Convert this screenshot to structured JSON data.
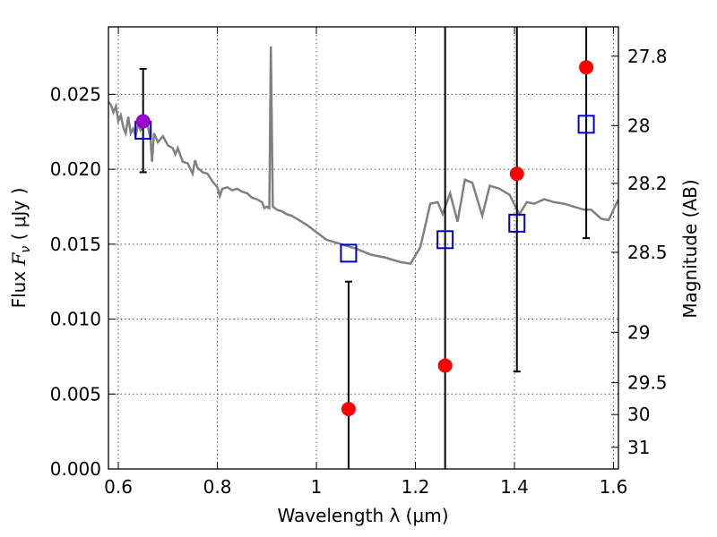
{
  "chart_data": {
    "type": "scatter",
    "xlabel": "Wavelength  λ (μm)",
    "ylabel": "Flux  F_ν  ( μJy )",
    "y2label": "Magnitude (AB)",
    "xlim": [
      0.58,
      1.61
    ],
    "ylim": [
      0.0,
      0.0295
    ],
    "grid": true,
    "x_ticks": [
      {
        "value": 0.6,
        "label": "0.6"
      },
      {
        "value": 0.8,
        "label": "0.8"
      },
      {
        "value": 1.0,
        "label": "1"
      },
      {
        "value": 1.2,
        "label": "1.2"
      },
      {
        "value": 1.4,
        "label": "1.4"
      },
      {
        "value": 1.6,
        "label": "1.6"
      }
    ],
    "y_ticks": [
      {
        "value": 0.0,
        "label": "0.000"
      },
      {
        "value": 0.005,
        "label": "0.005"
      },
      {
        "value": 0.01,
        "label": "0.010"
      },
      {
        "value": 0.015,
        "label": "0.015"
      },
      {
        "value": 0.02,
        "label": "0.020"
      },
      {
        "value": 0.025,
        "label": "0.025"
      }
    ],
    "y2_ticks": [
      {
        "mag": 27.8,
        "label": "27.8"
      },
      {
        "mag": 28.0,
        "label": "28"
      },
      {
        "mag": 28.2,
        "label": "28.2"
      },
      {
        "mag": 28.5,
        "label": "28.5"
      },
      {
        "mag": 29.0,
        "label": "29"
      },
      {
        "mag": 29.5,
        "label": "29.5"
      },
      {
        "mag": 30.0,
        "label": "30"
      },
      {
        "mag": 31.0,
        "label": "31"
      }
    ],
    "series": [
      {
        "kind": "line",
        "color": "#808080",
        "points": [
          [
            0.58,
            0.0245
          ],
          [
            0.585,
            0.0243
          ],
          [
            0.59,
            0.0238
          ],
          [
            0.595,
            0.0242
          ],
          [
            0.6,
            0.0232
          ],
          [
            0.605,
            0.0236
          ],
          [
            0.61,
            0.0228
          ],
          [
            0.615,
            0.0224
          ],
          [
            0.62,
            0.0235
          ],
          [
            0.625,
            0.0224
          ],
          [
            0.63,
            0.0227
          ],
          [
            0.635,
            0.0222
          ],
          [
            0.64,
            0.023
          ],
          [
            0.645,
            0.0226
          ],
          [
            0.65,
            0.0228
          ],
          [
            0.655,
            0.0232
          ],
          [
            0.66,
            0.0228
          ],
          [
            0.665,
            0.022
          ],
          [
            0.668,
            0.0205
          ],
          [
            0.672,
            0.0224
          ],
          [
            0.68,
            0.0218
          ],
          [
            0.69,
            0.0222
          ],
          [
            0.7,
            0.0216
          ],
          [
            0.71,
            0.0214
          ],
          [
            0.715,
            0.021
          ],
          [
            0.72,
            0.0214
          ],
          [
            0.73,
            0.0205
          ],
          [
            0.74,
            0.0204
          ],
          [
            0.75,
            0.0197
          ],
          [
            0.755,
            0.0206
          ],
          [
            0.76,
            0.0201
          ],
          [
            0.77,
            0.0198
          ],
          [
            0.78,
            0.0197
          ],
          [
            0.79,
            0.0192
          ],
          [
            0.8,
            0.0188
          ],
          [
            0.805,
            0.0182
          ],
          [
            0.81,
            0.0187
          ],
          [
            0.82,
            0.0188
          ],
          [
            0.83,
            0.0186
          ],
          [
            0.84,
            0.0187
          ],
          [
            0.85,
            0.0185
          ],
          [
            0.86,
            0.0184
          ],
          [
            0.87,
            0.0181
          ],
          [
            0.88,
            0.018
          ],
          [
            0.89,
            0.0178
          ],
          [
            0.895,
            0.0174
          ],
          [
            0.9,
            0.0175
          ],
          [
            0.905,
            0.0174
          ],
          [
            0.908,
            0.0282
          ],
          [
            0.912,
            0.0175
          ],
          [
            0.92,
            0.0173
          ],
          [
            0.93,
            0.0172
          ],
          [
            0.94,
            0.017
          ],
          [
            0.95,
            0.0169
          ],
          [
            0.96,
            0.0167
          ],
          [
            0.98,
            0.0163
          ],
          [
            1.0,
            0.0158
          ],
          [
            1.02,
            0.0153
          ],
          [
            1.05,
            0.015
          ],
          [
            1.08,
            0.0147
          ],
          [
            1.11,
            0.0143
          ],
          [
            1.14,
            0.0141
          ],
          [
            1.17,
            0.0138
          ],
          [
            1.19,
            0.0137
          ],
          [
            1.21,
            0.0148
          ],
          [
            1.23,
            0.0177
          ],
          [
            1.245,
            0.0178
          ],
          [
            1.255,
            0.017
          ],
          [
            1.27,
            0.0184
          ],
          [
            1.285,
            0.0165
          ],
          [
            1.3,
            0.0193
          ],
          [
            1.315,
            0.0191
          ],
          [
            1.335,
            0.0169
          ],
          [
            1.35,
            0.0189
          ],
          [
            1.37,
            0.0187
          ],
          [
            1.39,
            0.0183
          ],
          [
            1.41,
            0.017
          ],
          [
            1.425,
            0.0178
          ],
          [
            1.44,
            0.0177
          ],
          [
            1.46,
            0.018
          ],
          [
            1.48,
            0.0178
          ],
          [
            1.5,
            0.0177
          ],
          [
            1.52,
            0.0175
          ],
          [
            1.54,
            0.0173
          ],
          [
            1.555,
            0.0173
          ],
          [
            1.575,
            0.0167
          ],
          [
            1.59,
            0.0166
          ],
          [
            1.61,
            0.018
          ]
        ]
      },
      {
        "kind": "errorbar-open-square",
        "color": "#0000cc",
        "points": [
          {
            "x": 0.65,
            "y": 0.0226,
            "low": 0.0198,
            "high": 0.0267
          },
          {
            "x": 1.065,
            "y": 0.0144,
            "low": 0.0,
            "high": 0.0125
          },
          {
            "x": 1.26,
            "y": 0.0153,
            "low": 0.0,
            "high": 0.0295
          },
          {
            "x": 1.405,
            "y": 0.0164,
            "low": 0.0065,
            "high": 0.0295
          },
          {
            "x": 1.545,
            "y": 0.023,
            "low": 0.0154,
            "high": 0.0295
          }
        ]
      },
      {
        "kind": "filled-circle",
        "color": "#ff0000",
        "points": [
          {
            "x": 1.065,
            "y": 0.004
          },
          {
            "x": 1.26,
            "y": 0.0069
          },
          {
            "x": 1.405,
            "y": 0.0197
          },
          {
            "x": 1.545,
            "y": 0.0268
          }
        ]
      },
      {
        "kind": "filled-circle",
        "color": "#9900cc",
        "points": [
          {
            "x": 0.65,
            "y": 0.0232
          }
        ]
      }
    ]
  }
}
